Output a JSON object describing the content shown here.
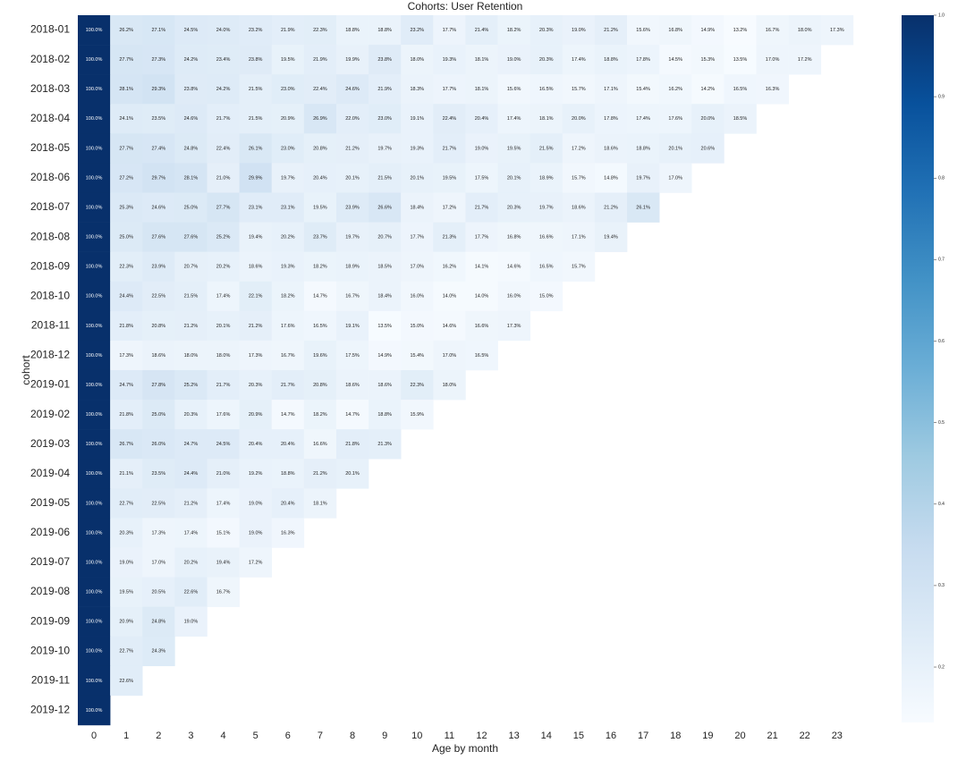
{
  "chart_data": {
    "type": "heatmap",
    "title": "Cohorts: User Retention",
    "x_label": "Age by month",
    "y_label": "cohort",
    "x": [
      0,
      1,
      2,
      3,
      4,
      5,
      6,
      7,
      8,
      9,
      10,
      11,
      12,
      13,
      14,
      15,
      16,
      17,
      18,
      19,
      20,
      21,
      22,
      23
    ],
    "y": [
      "2018-01",
      "2018-02",
      "2018-03",
      "2018-04",
      "2018-05",
      "2018-06",
      "2018-07",
      "2018-08",
      "2018-09",
      "2018-10",
      "2018-11",
      "2018-12",
      "2019-01",
      "2019-02",
      "2019-03",
      "2019-04",
      "2019-05",
      "2019-06",
      "2019-07",
      "2019-08",
      "2019-09",
      "2019-10",
      "2019-11",
      "2019-12"
    ],
    "values": [
      [
        1.0,
        0.262,
        0.271,
        0.245,
        0.24,
        0.232,
        0.219,
        0.223,
        0.188,
        0.188,
        0.232,
        0.177,
        0.214,
        0.182,
        0.203,
        0.19,
        0.212,
        0.156,
        0.168,
        0.149,
        0.132,
        0.167,
        0.18,
        0.173
      ],
      [
        1.0,
        0.277,
        0.273,
        0.242,
        0.234,
        0.238,
        0.195,
        0.219,
        0.199,
        0.238,
        0.18,
        0.193,
        0.181,
        0.19,
        0.203,
        0.174,
        0.188,
        0.178,
        0.145,
        0.153,
        0.135,
        0.17,
        0.172
      ],
      [
        1.0,
        0.281,
        0.293,
        0.238,
        0.242,
        0.215,
        0.23,
        0.224,
        0.246,
        0.219,
        0.183,
        0.177,
        0.181,
        0.156,
        0.165,
        0.157,
        0.171,
        0.154,
        0.162,
        0.142,
        0.165,
        0.163
      ],
      [
        1.0,
        0.241,
        0.235,
        0.246,
        0.217,
        0.215,
        0.209,
        0.269,
        0.22,
        0.23,
        0.191,
        0.224,
        0.204,
        0.174,
        0.181,
        0.2,
        0.178,
        0.174,
        0.176,
        0.2,
        0.185
      ],
      [
        1.0,
        0.277,
        0.274,
        0.248,
        0.224,
        0.261,
        0.23,
        0.208,
        0.212,
        0.197,
        0.193,
        0.217,
        0.19,
        0.195,
        0.215,
        0.172,
        0.186,
        0.188,
        0.201,
        0.206
      ],
      [
        1.0,
        0.272,
        0.297,
        0.281,
        0.21,
        0.299,
        0.197,
        0.204,
        0.201,
        0.215,
        0.201,
        0.195,
        0.175,
        0.201,
        0.189,
        0.157,
        0.148,
        0.197,
        0.17
      ],
      [
        1.0,
        0.253,
        0.246,
        0.25,
        0.277,
        0.231,
        0.231,
        0.195,
        0.239,
        0.266,
        0.184,
        0.172,
        0.217,
        0.203,
        0.197,
        0.186,
        0.212,
        0.261
      ],
      [
        1.0,
        0.25,
        0.276,
        0.276,
        0.252,
        0.194,
        0.202,
        0.237,
        0.197,
        0.207,
        0.177,
        0.213,
        0.177,
        0.168,
        0.166,
        0.171,
        0.194
      ],
      [
        1.0,
        0.223,
        0.239,
        0.207,
        0.202,
        0.186,
        0.193,
        0.182,
        0.189,
        0.185,
        0.17,
        0.162,
        0.141,
        0.146,
        0.165,
        0.157
      ],
      [
        1.0,
        0.244,
        0.225,
        0.215,
        0.174,
        0.221,
        0.182,
        0.147,
        0.167,
        0.184,
        0.16,
        0.14,
        0.14,
        0.16,
        0.15
      ],
      [
        1.0,
        0.218,
        0.208,
        0.212,
        0.201,
        0.212,
        0.176,
        0.165,
        0.191,
        0.135,
        0.15,
        0.146,
        0.166,
        0.173
      ],
      [
        1.0,
        0.173,
        0.186,
        0.18,
        0.18,
        0.173,
        0.167,
        0.196,
        0.175,
        0.149,
        0.154,
        0.17,
        0.165
      ],
      [
        1.0,
        0.247,
        0.278,
        0.252,
        0.217,
        0.203,
        0.217,
        0.208,
        0.186,
        0.186,
        0.223,
        0.18
      ],
      [
        1.0,
        0.218,
        0.25,
        0.203,
        0.176,
        0.209,
        0.147,
        0.182,
        0.147,
        0.188,
        0.159
      ],
      [
        1.0,
        0.267,
        0.26,
        0.247,
        0.245,
        0.204,
        0.204,
        0.166,
        0.218,
        0.213
      ],
      [
        1.0,
        0.211,
        0.235,
        0.244,
        0.21,
        0.192,
        0.188,
        0.212,
        0.201
      ],
      [
        1.0,
        0.227,
        0.225,
        0.212,
        0.174,
        0.19,
        0.204,
        0.181
      ],
      [
        1.0,
        0.203,
        0.173,
        0.174,
        0.151,
        0.19,
        0.163
      ],
      [
        1.0,
        0.19,
        0.17,
        0.202,
        0.194,
        0.172
      ],
      [
        1.0,
        0.195,
        0.205,
        0.226,
        0.167
      ],
      [
        1.0,
        0.209,
        0.248,
        0.19
      ],
      [
        1.0,
        0.227,
        0.243
      ],
      [
        1.0,
        0.226
      ],
      [
        1.0
      ]
    ],
    "value_labels": [
      [
        "100.0%",
        "26.2%",
        "27.1%",
        "24.5%",
        "24.0%",
        "23.2%",
        "21.9%",
        "22.3%",
        "18.8%",
        "18.8%",
        "23.2%",
        "17.7%",
        "21.4%",
        "18.2%",
        "20.3%",
        "19.0%",
        "21.2%",
        "15.6%",
        "16.8%",
        "14.9%",
        "13.2%",
        "16.7%",
        "18.0%",
        "17.3%"
      ],
      [
        "100.0%",
        "27.7%",
        "27.3%",
        "24.2%",
        "23.4%",
        "23.8%",
        "19.5%",
        "21.9%",
        "19.9%",
        "23.8%",
        "18.0%",
        "19.3%",
        "18.1%",
        "19.0%",
        "20.3%",
        "17.4%",
        "18.8%",
        "17.8%",
        "14.5%",
        "15.3%",
        "13.5%",
        "17.0%",
        "17.2%"
      ],
      [
        "100.0%",
        "28.1%",
        "29.3%",
        "23.8%",
        "24.2%",
        "21.5%",
        "23.0%",
        "22.4%",
        "24.6%",
        "21.9%",
        "18.3%",
        "17.7%",
        "18.1%",
        "15.6%",
        "16.5%",
        "15.7%",
        "17.1%",
        "15.4%",
        "16.2%",
        "14.2%",
        "16.5%",
        "16.3%"
      ],
      [
        "100.0%",
        "24.1%",
        "23.5%",
        "24.6%",
        "21.7%",
        "21.5%",
        "20.9%",
        "26.9%",
        "22.0%",
        "23.0%",
        "19.1%",
        "22.4%",
        "20.4%",
        "17.4%",
        "18.1%",
        "20.0%",
        "17.8%",
        "17.4%",
        "17.6%",
        "20.0%",
        "18.5%"
      ],
      [
        "100.0%",
        "27.7%",
        "27.4%",
        "24.8%",
        "22.4%",
        "26.1%",
        "23.0%",
        "20.8%",
        "21.2%",
        "19.7%",
        "19.3%",
        "21.7%",
        "19.0%",
        "19.5%",
        "21.5%",
        "17.2%",
        "18.6%",
        "18.8%",
        "20.1%",
        "20.6%"
      ],
      [
        "100.0%",
        "27.2%",
        "29.7%",
        "28.1%",
        "21.0%",
        "29.9%",
        "19.7%",
        "20.4%",
        "20.1%",
        "21.5%",
        "20.1%",
        "19.5%",
        "17.5%",
        "20.1%",
        "18.9%",
        "15.7%",
        "14.8%",
        "19.7%",
        "17.0%"
      ],
      [
        "100.0%",
        "25.3%",
        "24.6%",
        "25.0%",
        "27.7%",
        "23.1%",
        "23.1%",
        "19.5%",
        "23.9%",
        "26.6%",
        "18.4%",
        "17.2%",
        "21.7%",
        "20.3%",
        "19.7%",
        "18.6%",
        "21.2%",
        "26.1%"
      ],
      [
        "100.0%",
        "25.0%",
        "27.6%",
        "27.6%",
        "25.2%",
        "19.4%",
        "20.2%",
        "23.7%",
        "19.7%",
        "20.7%",
        "17.7%",
        "21.3%",
        "17.7%",
        "16.8%",
        "16.6%",
        "17.1%",
        "19.4%"
      ],
      [
        "100.0%",
        "22.3%",
        "23.9%",
        "20.7%",
        "20.2%",
        "18.6%",
        "19.3%",
        "18.2%",
        "18.9%",
        "18.5%",
        "17.0%",
        "16.2%",
        "14.1%",
        "14.6%",
        "16.5%",
        "15.7%"
      ],
      [
        "100.0%",
        "24.4%",
        "22.5%",
        "21.5%",
        "17.4%",
        "22.1%",
        "18.2%",
        "14.7%",
        "16.7%",
        "18.4%",
        "16.0%",
        "14.0%",
        "14.0%",
        "16.0%",
        "15.0%"
      ],
      [
        "100.0%",
        "21.8%",
        "20.8%",
        "21.2%",
        "20.1%",
        "21.2%",
        "17.6%",
        "16.5%",
        "19.1%",
        "13.5%",
        "15.0%",
        "14.6%",
        "16.6%",
        "17.3%"
      ],
      [
        "100.0%",
        "17.3%",
        "18.6%",
        "18.0%",
        "18.0%",
        "17.3%",
        "16.7%",
        "19.6%",
        "17.5%",
        "14.9%",
        "15.4%",
        "17.0%",
        "16.5%"
      ],
      [
        "100.0%",
        "24.7%",
        "27.8%",
        "25.2%",
        "21.7%",
        "20.3%",
        "21.7%",
        "20.8%",
        "18.6%",
        "18.6%",
        "22.3%",
        "18.0%"
      ],
      [
        "100.0%",
        "21.8%",
        "25.0%",
        "20.3%",
        "17.6%",
        "20.9%",
        "14.7%",
        "18.2%",
        "14.7%",
        "18.8%",
        "15.9%"
      ],
      [
        "100.0%",
        "26.7%",
        "26.0%",
        "24.7%",
        "24.5%",
        "20.4%",
        "20.4%",
        "16.6%",
        "21.8%",
        "21.3%"
      ],
      [
        "100.0%",
        "21.1%",
        "23.5%",
        "24.4%",
        "21.0%",
        "19.2%",
        "18.8%",
        "21.2%",
        "20.1%"
      ],
      [
        "100.0%",
        "22.7%",
        "22.5%",
        "21.2%",
        "17.4%",
        "19.0%",
        "20.4%",
        "18.1%"
      ],
      [
        "100.0%",
        "20.3%",
        "17.3%",
        "17.4%",
        "15.1%",
        "19.0%",
        "16.3%"
      ],
      [
        "100.0%",
        "19.0%",
        "17.0%",
        "20.2%",
        "19.4%",
        "17.2%"
      ],
      [
        "100.0%",
        "19.5%",
        "20.5%",
        "22.6%",
        "16.7%"
      ],
      [
        "100.0%",
        "20.9%",
        "24.8%",
        "19.0%"
      ],
      [
        "100.0%",
        "22.7%",
        "24.3%"
      ],
      [
        "100.0%",
        "22.6%"
      ],
      [
        "100.0%"
      ]
    ],
    "clim": [
      0.132,
      1
    ],
    "cticks": [
      {
        "value": 1,
        "label": "1.0"
      },
      0.9,
      0.8,
      0.7,
      0.6,
      0.5,
      0.4,
      0.3,
      0.2
    ],
    "colorscale": [
      "#f7fbff",
      "#deebf7",
      "#c6dbef",
      "#9ecae1",
      "#6baed6",
      "#4292c6",
      "#2171b5",
      "#08519c",
      "#08306b"
    ]
  }
}
